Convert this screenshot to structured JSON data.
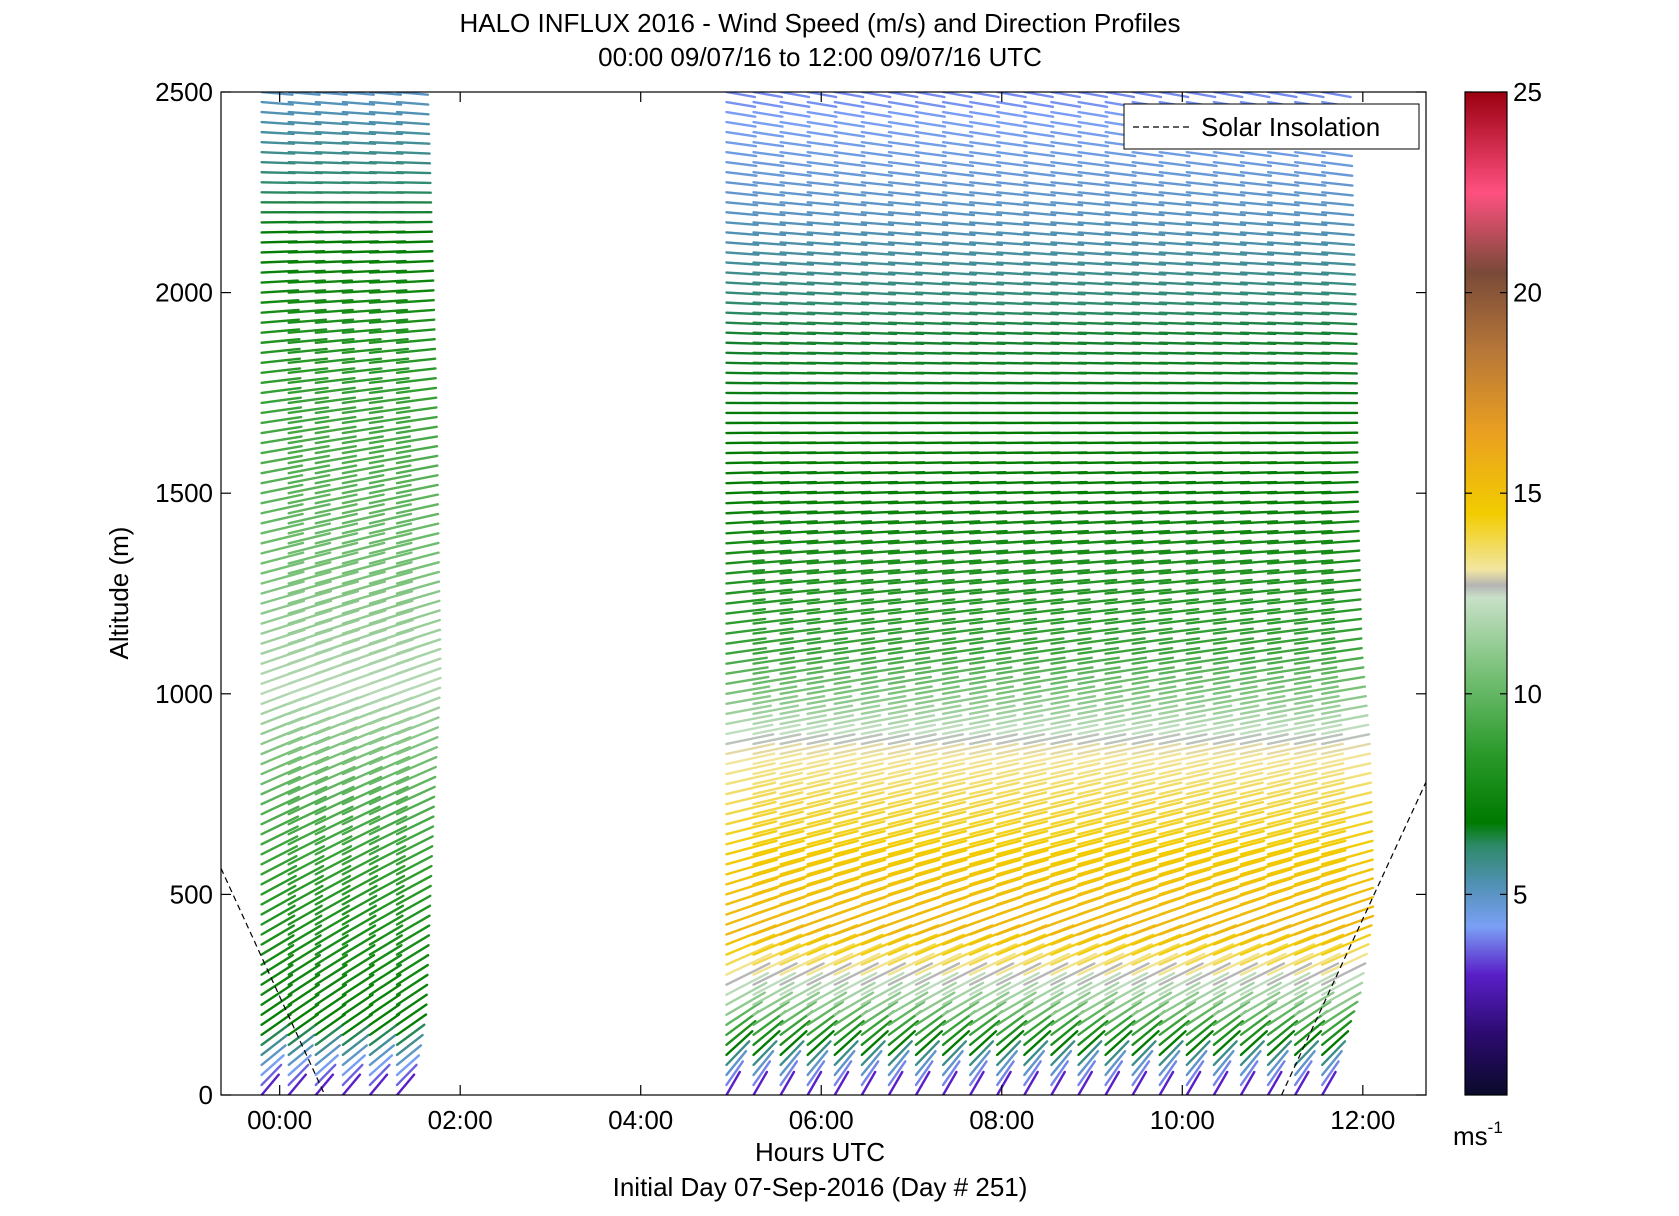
{
  "chart_data": {
    "type": "scatter",
    "subtype": "wind-barb-profile",
    "title": "HALO INFLUX 2016 - Wind Speed (m/s) and Direction Profiles",
    "subtitle": "00:00 09/07/16 to 12:00 09/07/16  UTC",
    "xlabel": "Hours UTC",
    "xlabel2": "Initial Day 07-Sep-2016 (Day # 251)",
    "ylabel": "Altitude (m)",
    "xlim": [
      -0.65,
      12.7
    ],
    "ylim": [
      0,
      2500
    ],
    "x_ticks": [
      0,
      2,
      4,
      6,
      8,
      10,
      12
    ],
    "x_tick_labels": [
      "00:00",
      "02:00",
      "04:00",
      "06:00",
      "08:00",
      "10:00",
      "12:00"
    ],
    "y_ticks": [
      0,
      500,
      1000,
      1500,
      2000,
      2500
    ],
    "y_tick_labels": [
      "0",
      "500",
      "1000",
      "1500",
      "2000",
      "2500"
    ],
    "grid": false,
    "legend": {
      "position": "top-right",
      "entries": [
        {
          "label": "Solar Insolation",
          "style": "dashed",
          "color": "#000000"
        }
      ]
    },
    "colorbar": {
      "range": [
        0,
        25
      ],
      "ticks": [
        5,
        10,
        15,
        20,
        25
      ],
      "tick_labels": [
        "5",
        "10",
        "15",
        "20",
        "25"
      ],
      "unit_label": "ms",
      "unit_exponent": "-1",
      "stops": [
        {
          "v": 0,
          "c": "#0a0a2a"
        },
        {
          "v": 1.5,
          "c": "#2b0a6e"
        },
        {
          "v": 3,
          "c": "#5a1fc8"
        },
        {
          "v": 4.2,
          "c": "#7aa0f5"
        },
        {
          "v": 5.3,
          "c": "#4f90b0"
        },
        {
          "v": 6.2,
          "c": "#2e8a6a"
        },
        {
          "v": 6.8,
          "c": "#007a00"
        },
        {
          "v": 8.5,
          "c": "#2a9a2a"
        },
        {
          "v": 10.5,
          "c": "#76c076"
        },
        {
          "v": 12.4,
          "c": "#c8e0c8"
        },
        {
          "v": 12.7,
          "c": "#b4b4b4"
        },
        {
          "v": 13.1,
          "c": "#f2e6a0"
        },
        {
          "v": 14.5,
          "c": "#f2cc00"
        },
        {
          "v": 16.5,
          "c": "#eaa020"
        },
        {
          "v": 18.5,
          "c": "#b87838"
        },
        {
          "v": 20.5,
          "c": "#7a4a38"
        },
        {
          "v": 22.5,
          "c": "#ff5080"
        },
        {
          "v": 25,
          "c": "#9a0010"
        }
      ]
    },
    "solar_insolation": [
      {
        "x": [
          -0.65,
          0.5
        ],
        "y": [
          565,
          0
        ]
      },
      {
        "x": [
          11.1,
          12.7
        ],
        "y": [
          0,
          780
        ]
      }
    ],
    "profile_groups": [
      {
        "hours": [
          -0.2,
          0.1,
          0.4,
          0.7,
          1.0,
          1.3
        ],
        "alt_min": 0,
        "alt_max": 2500
      },
      {
        "hours": [
          4.95,
          5.25,
          5.55,
          5.85,
          6.15,
          6.45,
          6.75,
          7.05,
          7.35,
          7.65,
          7.95,
          8.25,
          8.55,
          8.85,
          9.15,
          9.45,
          9.75,
          10.05,
          10.35,
          10.65,
          10.95,
          11.25,
          11.55
        ],
        "alt_min": 0,
        "alt_max": 2500
      }
    ],
    "altitude_step": 25,
    "wind_speed_profile_early": [
      {
        "alt": 0,
        "speed": 3.0,
        "dir_deg": 220
      },
      {
        "alt": 60,
        "speed": 4.5,
        "dir_deg": 230
      },
      {
        "alt": 150,
        "speed": 7.0,
        "dir_deg": 235
      },
      {
        "alt": 400,
        "speed": 8.0,
        "dir_deg": 240
      },
      {
        "alt": 700,
        "speed": 9.5,
        "dir_deg": 245
      },
      {
        "alt": 1000,
        "speed": 12.0,
        "dir_deg": 250
      },
      {
        "alt": 1300,
        "speed": 10.5,
        "dir_deg": 255
      },
      {
        "alt": 1700,
        "speed": 9.0,
        "dir_deg": 262
      },
      {
        "alt": 2100,
        "speed": 7.0,
        "dir_deg": 268
      },
      {
        "alt": 2500,
        "speed": 5.0,
        "dir_deg": 275
      }
    ],
    "wind_speed_profile_late": [
      {
        "alt": 0,
        "speed": 3.0,
        "dir_deg": 210
      },
      {
        "alt": 80,
        "speed": 6.0,
        "dir_deg": 225
      },
      {
        "alt": 200,
        "speed": 11.0,
        "dir_deg": 240
      },
      {
        "alt": 400,
        "speed": 15.5,
        "dir_deg": 250
      },
      {
        "alt": 600,
        "speed": 14.5,
        "dir_deg": 255
      },
      {
        "alt": 850,
        "speed": 13.0,
        "dir_deg": 258
      },
      {
        "alt": 1100,
        "speed": 9.0,
        "dir_deg": 262
      },
      {
        "alt": 1500,
        "speed": 7.0,
        "dir_deg": 268
      },
      {
        "alt": 1900,
        "speed": 6.5,
        "dir_deg": 272
      },
      {
        "alt": 2200,
        "speed": 5.0,
        "dir_deg": 275
      },
      {
        "alt": 2500,
        "speed": 4.0,
        "dir_deg": 280
      }
    ]
  }
}
